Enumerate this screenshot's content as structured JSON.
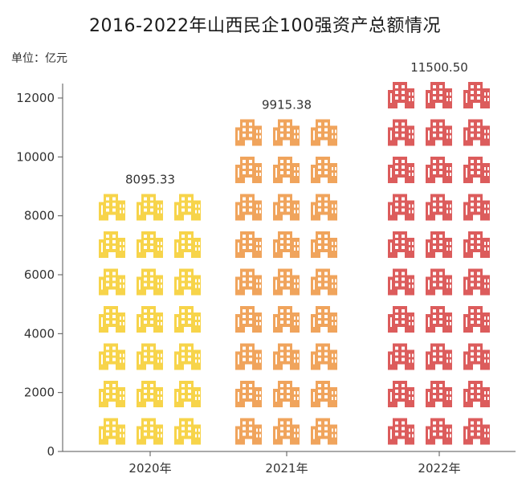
{
  "chart_data": {
    "type": "bar",
    "title": "2016-2022年山西民企100强资产总额情况",
    "unit_label": "单位：亿元",
    "categories": [
      "2020年",
      "2021年",
      "2022年"
    ],
    "values": [
      8095.33,
      9915.38,
      11500.5
    ],
    "value_labels": [
      "8095.33",
      "9915.38",
      "11500.50"
    ],
    "ylim": [
      0,
      12000
    ],
    "yticks": [
      0,
      2000,
      4000,
      6000,
      8000,
      10000,
      12000
    ],
    "colors": [
      "#f7d44a",
      "#f0a45c",
      "#dc5c5c"
    ],
    "grid": false,
    "icon": "building-icon"
  }
}
